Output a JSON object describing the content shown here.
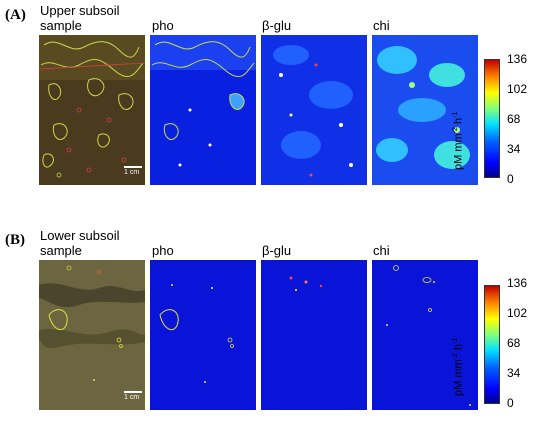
{
  "panel_a": {
    "label": "(A)",
    "sample_line1": "Upper subsoil",
    "sample_line2": "sample",
    "maps": [
      "pho",
      "β-glu",
      "chi"
    ],
    "scale_bar": "1 cm"
  },
  "panel_b": {
    "label": "(B)",
    "sample_line1": "Lower subsoil",
    "sample_line2": "sample",
    "maps": [
      "pho",
      "β-glu",
      "chi"
    ],
    "scale_bar": "1 cm"
  },
  "colorbar": {
    "ticks": [
      "136",
      "102",
      "68",
      "34",
      "0"
    ],
    "unit_main": "pM mm",
    "unit_exp1": "-2",
    "unit_mid": " h",
    "unit_exp2": "-1",
    "colors": [
      "#c00000",
      "#ff8000",
      "#ffff00",
      "#7fff7f",
      "#00e0ff",
      "#0060ff",
      "#0000ff",
      "#00008f"
    ]
  }
}
